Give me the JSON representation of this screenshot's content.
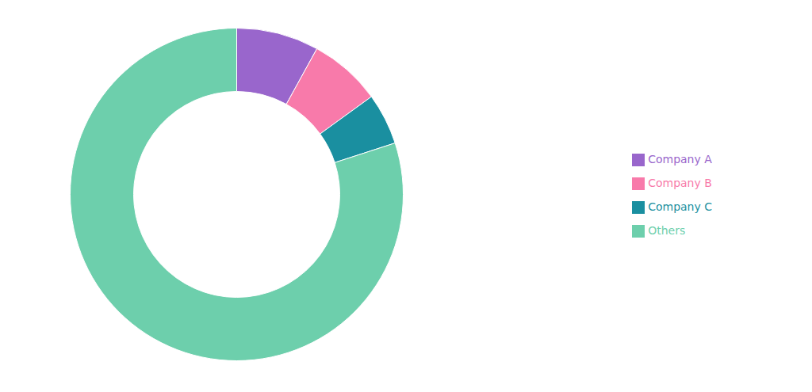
{
  "chart_data": {
    "type": "donut",
    "categories": [
      "Company A",
      "Company B",
      "Company C",
      "Others"
    ],
    "values": [
      8,
      7,
      5,
      80
    ],
    "colors": [
      "#9966cc",
      "#f87aaa",
      "#1a8fa0",
      "#6dcfac"
    ],
    "legend": "right"
  }
}
